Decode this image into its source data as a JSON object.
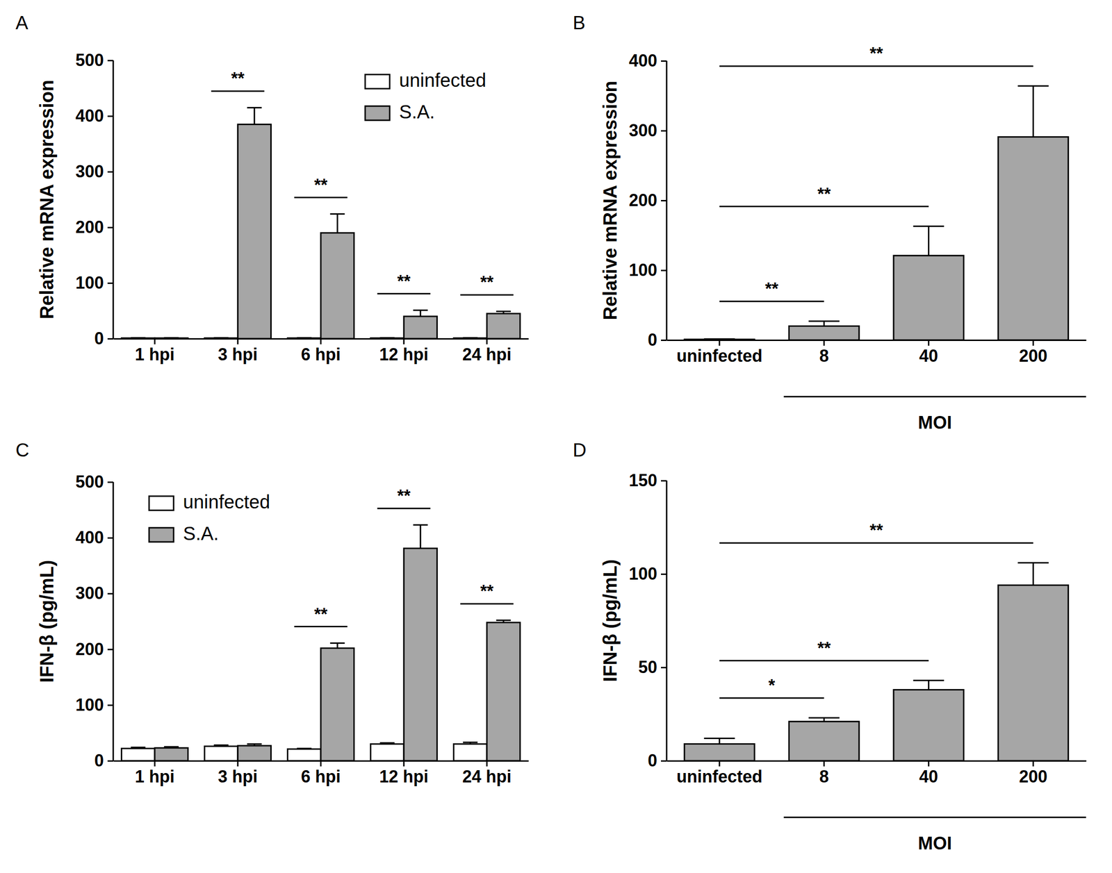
{
  "chart_data": [
    {
      "type": "bar",
      "title": "A",
      "y_label": "Relative mRNA expression",
      "categories": [
        "1 hpi",
        "3 hpi",
        "6 hpi",
        "12 hpi",
        "24 hpi"
      ],
      "series": [
        {
          "name": "uninfected",
          "color": "#ffffff",
          "values": [
            1,
            1,
            1,
            1,
            1
          ],
          "errors": [
            0.5,
            0.5,
            0.5,
            0.5,
            0.5
          ]
        },
        {
          "name": "S.A.",
          "color": "#a6a6a6",
          "values": [
            1,
            385,
            190,
            40,
            45
          ],
          "errors": [
            0.5,
            30,
            34,
            11,
            4
          ]
        }
      ],
      "significance": [
        null,
        "**",
        "**",
        "**",
        "**"
      ],
      "ylim": [
        0,
        500
      ],
      "yticks": [
        0,
        100,
        200,
        300,
        400,
        500
      ],
      "legend": "upper right"
    },
    {
      "type": "bar",
      "title": "B",
      "y_label": "Relative mRNA expression",
      "x_label": "MOI",
      "categories": [
        "uninfected",
        "8",
        "40",
        "200"
      ],
      "values": [
        1,
        20,
        121,
        291
      ],
      "errors": [
        0.5,
        7,
        42,
        73
      ],
      "color": "#a6a6a6",
      "significance": [
        null,
        "**",
        "**",
        "**"
      ],
      "ylim": [
        0,
        400
      ],
      "yticks": [
        0,
        100,
        200,
        300,
        400
      ]
    },
    {
      "type": "bar",
      "title": "C",
      "y_label": "IFN-β (pg/mL)",
      "categories": [
        "1 hpi",
        "3 hpi",
        "6 hpi",
        "12 hpi",
        "24 hpi"
      ],
      "series": [
        {
          "name": "uninfected",
          "color": "#ffffff",
          "values": [
            22,
            26,
            21,
            30,
            30
          ],
          "errors": [
            2,
            2,
            1,
            2,
            3
          ]
        },
        {
          "name": "S.A.",
          "color": "#a6a6a6",
          "values": [
            23,
            27,
            202,
            381,
            248
          ],
          "errors": [
            2,
            3,
            9,
            42,
            4
          ]
        }
      ],
      "significance": [
        null,
        null,
        "**",
        "**",
        "**"
      ],
      "ylim": [
        0,
        500
      ],
      "yticks": [
        0,
        100,
        200,
        300,
        400,
        500
      ],
      "legend": "upper left"
    },
    {
      "type": "bar",
      "title": "D",
      "y_label": "IFN-β (pg/mL)",
      "x_label": "MOI",
      "categories": [
        "uninfected",
        "8",
        "40",
        "200"
      ],
      "values": [
        9,
        21,
        38,
        94
      ],
      "errors": [
        3,
        2,
        5,
        12
      ],
      "color": "#a6a6a6",
      "significance": [
        null,
        "*",
        "**",
        "**"
      ],
      "ylim": [
        0,
        150
      ],
      "yticks": [
        0,
        50,
        100,
        150
      ]
    }
  ]
}
